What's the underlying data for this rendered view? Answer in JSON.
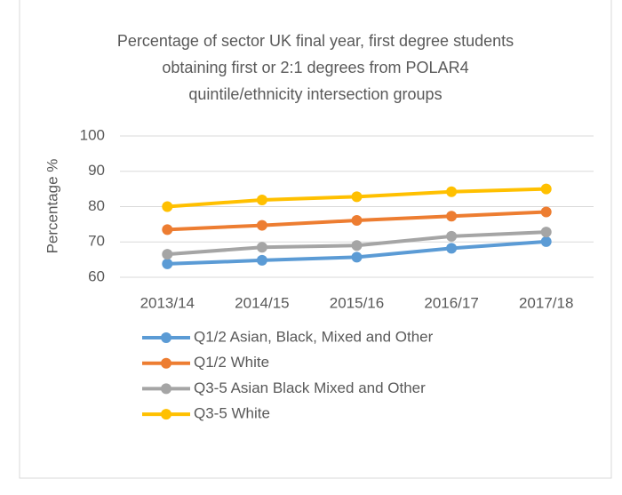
{
  "chart_data": {
    "type": "line",
    "title": [
      "Percentage of sector UK final year, first degree students",
      "obtaining first or 2:1 degrees from POLAR4",
      "quintile/ethnicity intersection groups"
    ],
    "y_label": "Percentage %",
    "categories": [
      "2013/14",
      "2014/15",
      "2015/16",
      "2016/17",
      "2017/18"
    ],
    "series": [
      {
        "name": "Q1/2 Asian, Black, Mixed and Other",
        "color": "#5b9bd5",
        "values": [
          63.8,
          64.8,
          65.7,
          68.2,
          70.1
        ]
      },
      {
        "name": "Q1/2 White",
        "color": "#ed7d31",
        "values": [
          73.5,
          74.7,
          76.1,
          77.3,
          78.5
        ]
      },
      {
        "name": "Q3-5 Asian Black Mixed and Other",
        "color": "#a5a5a5",
        "values": [
          66.5,
          68.5,
          69.0,
          71.6,
          72.8
        ]
      },
      {
        "name": "Q3-5 White",
        "color": "#ffc000",
        "values": [
          80.0,
          81.9,
          82.8,
          84.2,
          85.0
        ]
      }
    ],
    "ylim": [
      60,
      100
    ],
    "yticks": [
      60,
      70,
      80,
      90,
      100
    ],
    "grid": true
  }
}
